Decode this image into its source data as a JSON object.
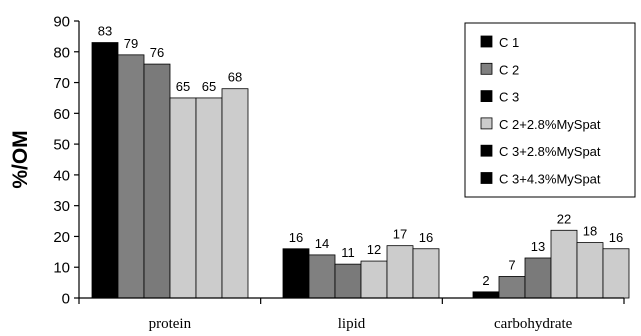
{
  "chart_data": {
    "type": "bar",
    "ylabel": "%/OM",
    "ylim": [
      0,
      90
    ],
    "yticks": [
      0,
      10,
      20,
      30,
      40,
      50,
      60,
      70,
      80,
      90
    ],
    "categories": [
      "protein",
      "lipid",
      "carbohydrate"
    ],
    "series": [
      {
        "name": "C 1",
        "color": "#000000",
        "values": [
          83,
          16,
          2
        ],
        "labels": [
          "83",
          "16",
          "2"
        ]
      },
      {
        "name": "C 2",
        "color": "#808080",
        "values": [
          79,
          14,
          7
        ],
        "labels": [
          "79",
          "14",
          "7"
        ]
      },
      {
        "name": "C 3",
        "color": "#7a7a7a",
        "values": [
          76,
          11,
          13
        ],
        "labels": [
          "76",
          "11",
          "13"
        ]
      },
      {
        "name": "C 2+2.8%MySpat",
        "color": "#cccccc",
        "values": [
          65,
          12,
          22
        ],
        "labels": [
          "65",
          "12",
          "22"
        ]
      },
      {
        "name": "C 3+2.8%MySpat",
        "color": "#cccccc",
        "values": [
          65,
          17,
          18
        ],
        "labels": [
          "65",
          "17",
          "18"
        ]
      },
      {
        "name": "C 3+4.3%MySpat",
        "color": "#cccccc",
        "values": [
          68,
          16,
          16
        ],
        "labels": [
          "68",
          "16",
          "16"
        ]
      }
    ],
    "legend_swatch_colors": [
      "#000000",
      "#808080",
      "#000000",
      "#cccccc",
      "#000000",
      "#000000"
    ],
    "legend_position": "top-right",
    "grid": false
  }
}
